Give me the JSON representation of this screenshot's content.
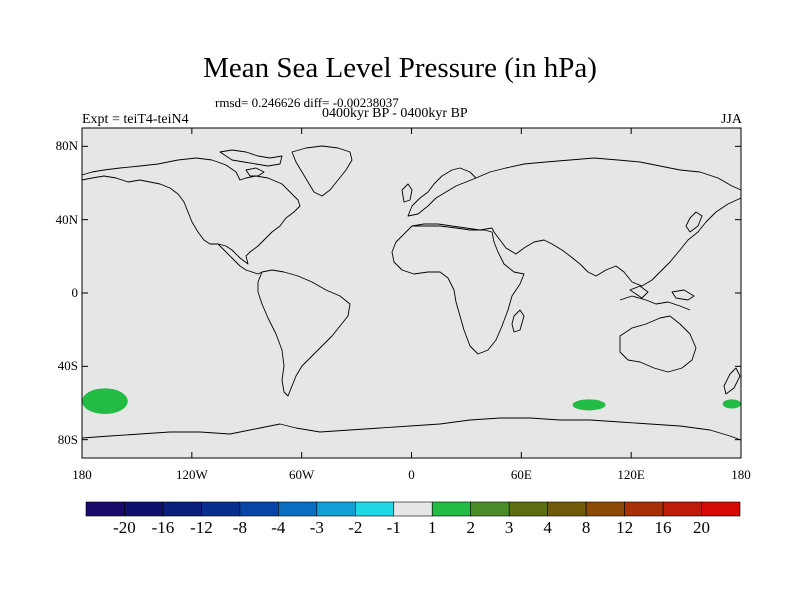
{
  "map": {
    "title": "Mean Sea Level Pressure (in hPa)",
    "stats": "rmsd= 0.246626 diff= -0.00238037",
    "period": "0400kyr BP - 0400kyr BP",
    "experiment": "Expt = teiT4-teiN4",
    "season": "JJA",
    "lat_labels": [
      "80N",
      "40N",
      "0",
      "40S",
      "80S"
    ],
    "lon_labels": [
      "180",
      "120W",
      "60W",
      "0",
      "60E",
      "120E",
      "180"
    ],
    "lat_values": [
      80,
      40,
      0,
      -40,
      -80
    ],
    "lon_values": [
      -180,
      -120,
      -60,
      0,
      60,
      120,
      180
    ],
    "background_color": "#e6e6e6",
    "anomaly_color": "#22bb44",
    "anomaly_regions": [
      {
        "name": "south-pacific-anomaly",
        "lon_min": -180,
        "lon_max": -155,
        "lat_min": -66,
        "lat_max": -52
      },
      {
        "name": "south-indian-anomaly",
        "lon_min": 88,
        "lon_max": 106,
        "lat_min": -64,
        "lat_max": -58
      },
      {
        "name": "dateline-anomaly",
        "lon_min": 170,
        "lon_max": 180,
        "lat_min": -63,
        "lat_max": -58
      }
    ]
  },
  "colorbar": {
    "labels": [
      "-20",
      "-16",
      "-12",
      "-8",
      "-4",
      "-3",
      "-2",
      "-1",
      "1",
      "2",
      "3",
      "4",
      "8",
      "12",
      "16",
      "20"
    ],
    "colors": [
      "#1a0a6b",
      "#10106e",
      "#0a1e7a",
      "#082e90",
      "#0746a8",
      "#0a6ec0",
      "#12a0d6",
      "#1ed8e6",
      "#e6e6e6",
      "#22bb44",
      "#4c8c28",
      "#5c6e10",
      "#6e5a08",
      "#8c4a06",
      "#a83006",
      "#c01a08",
      "#d80a08"
    ]
  }
}
